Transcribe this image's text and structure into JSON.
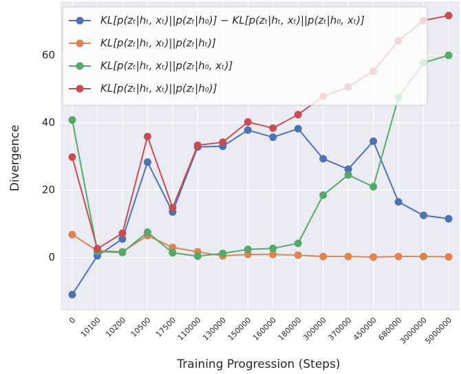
{
  "chart_data": {
    "type": "line",
    "xlabel": "Training Progression (Steps)",
    "ylabel": "Divergence",
    "categories": [
      "0",
      "10100",
      "10200",
      "10500",
      "17500",
      "110000",
      "130000",
      "150000",
      "160000",
      "180000",
      "300000",
      "370000",
      "450000",
      "680000",
      "3000000",
      "5000000"
    ],
    "ylim": [
      -15.8,
      76
    ],
    "yticks": [
      0,
      20,
      40,
      60
    ],
    "grid": true,
    "legend": "upper left",
    "series": [
      {
        "name": "KL[p(zₜ|hₜ, xₜ)||p(zₜ|h₀)] − KL[p(zₜ|hₜ, xₜ)||p(zₜ|h₀, xₜ)]",
        "color": "#4c72b0",
        "values": [
          -11,
          0.5,
          5.5,
          28.3,
          13.5,
          32.8,
          33,
          37.8,
          35.7,
          38.2,
          29.3,
          26.2,
          34.5,
          16.5,
          12.5,
          11.5
        ]
      },
      {
        "name": "KL[p(zₜ|hₜ, xₜ)||p(zₜ|hₜ)]",
        "color": "#dd8452",
        "values": [
          6.8,
          2,
          1.7,
          6.5,
          3,
          1.7,
          0.5,
          0.9,
          0.9,
          0.7,
          0.3,
          0.3,
          0.1,
          0.3,
          0.3,
          0.2
        ]
      },
      {
        "name": "KL[p(zₜ|hₜ, xₜ)||p(zₜ|h₀, xₜ)]",
        "color": "#55a868",
        "values": [
          40.8,
          1.8,
          1.5,
          7.5,
          1.4,
          0.4,
          1.2,
          2.4,
          2.7,
          4.2,
          18.5,
          24.5,
          21,
          47.5,
          57.8,
          60
        ]
      },
      {
        "name": "KL[p(zₜ|hₜ, xₜ)||p(zₜ|h₀)]",
        "color": "#c44e52",
        "values": [
          29.8,
          2.6,
          7.2,
          35.9,
          14.8,
          33.3,
          34.2,
          40.2,
          38.4,
          42.4,
          47.8,
          50.6,
          55.3,
          64.3,
          70.3,
          71.8
        ]
      }
    ]
  }
}
